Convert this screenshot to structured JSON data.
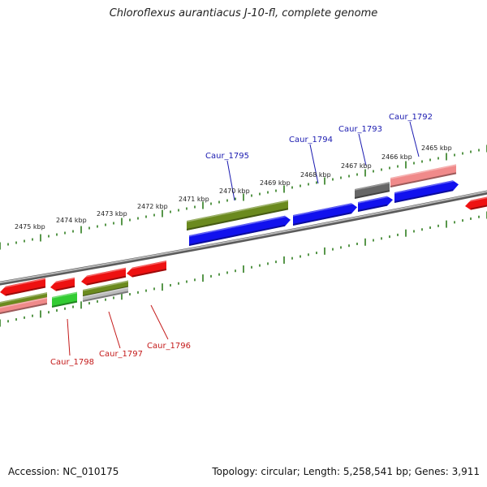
{
  "title": "Chloroflexus aurantiacus J-10-fl, complete genome",
  "accession": "Accession: NC_010175",
  "summary": "Topology: circular; Length: 5,258,541 bp; Genes: 3,911",
  "colors": {
    "backbone": "#8c8c8c",
    "tick": "#2e7d1e",
    "label_forward": "#1a1ab0",
    "label_reverse": "#c41a1a",
    "gene_blue": "#1111ee",
    "gene_red": "#ee1111",
    "gene_olive": "#6b8a1e",
    "gene_green": "#33cc33",
    "gene_pink": "#f08a8a",
    "gene_gray": "#666666",
    "gene_lightgray": "#bbbbbb"
  },
  "scale_labels": [
    "2475 kbp",
    "2474 kbp",
    "2473 kbp",
    "2472 kbp",
    "2471 kbp",
    "2470 kbp",
    "2469 kbp",
    "2468 kbp",
    "2467 kbp",
    "2466 kbp",
    "2465 kbp"
  ],
  "gene_labels_forward": [
    "Caur_1795",
    "Caur_1794",
    "Caur_1793",
    "Caur_1792"
  ],
  "gene_labels_reverse": [
    "Caur_1798",
    "Caur_1797",
    "Caur_1796"
  ]
}
